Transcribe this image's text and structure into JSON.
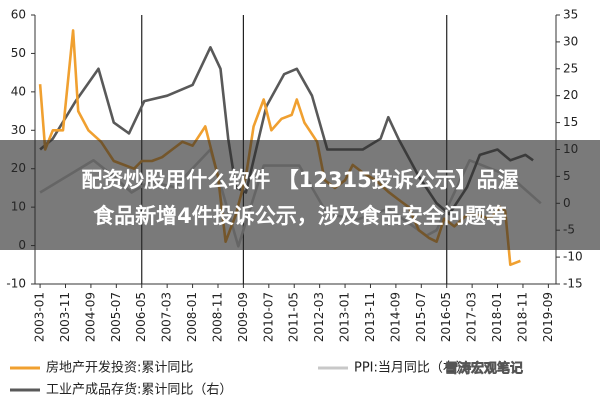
{
  "chart_data": {
    "type": "line",
    "xlim": [
      "2002-11",
      "2019-12"
    ],
    "xticks": [
      "2003-01",
      "2003-11",
      "2004-09",
      "2005-07",
      "2006-05",
      "2007-03",
      "2008-01",
      "2008-11",
      "2009-09",
      "2010-07",
      "2011-05",
      "2012-03",
      "2013-01",
      "2013-11",
      "2014-09",
      "2015-07",
      "2016-05",
      "2017-03",
      "2018-01",
      "2018-11",
      "2019-09"
    ],
    "ylim": [
      -10,
      60
    ],
    "yticks": [
      -10,
      0,
      10,
      20,
      30,
      40,
      50,
      60
    ],
    "y2lim": [
      -15,
      35
    ],
    "y2ticks": [
      -15,
      -10,
      -5,
      0,
      5,
      10,
      15,
      20,
      25,
      30,
      35
    ],
    "vlines": [
      "2006-05",
      "2009-09",
      "2016-05"
    ],
    "series": [
      {
        "name": "PPI:当月同比（右）",
        "color": "#c8c8c8",
        "axis": "y2",
        "x": [
          "2003-01",
          "2004-10",
          "2005-06",
          "2006-01",
          "2006-08",
          "2007-06",
          "2008-08",
          "2009-07",
          "2010-05",
          "2011-07",
          "2012-06",
          "2013-06",
          "2014-06",
          "2015-09",
          "2016-01",
          "2017-02",
          "2018-06",
          "2019-06"
        ],
        "values": [
          2,
          8,
          5,
          2,
          4,
          3,
          10,
          -8,
          7,
          7,
          -2,
          -3,
          -1,
          -6,
          -5,
          8,
          5,
          0
        ]
      },
      {
        "name": "工业产成品存货:累计同比（右）",
        "color": "#595959",
        "axis": "y2",
        "x": [
          "2003-01",
          "2003-06",
          "2004-03",
          "2004-12",
          "2005-06",
          "2005-12",
          "2006-06",
          "2007-03",
          "2008-01",
          "2008-08",
          "2008-12",
          "2009-03",
          "2009-06",
          "2009-10",
          "2010-06",
          "2011-01",
          "2011-06",
          "2011-12",
          "2012-06",
          "2013-01",
          "2013-08",
          "2014-03",
          "2014-06",
          "2014-10",
          "2015-06",
          "2016-01",
          "2016-06",
          "2017-01",
          "2017-06",
          "2018-01",
          "2018-06",
          "2018-12",
          "2019-03"
        ],
        "values": [
          10,
          12,
          19,
          25,
          15,
          13,
          19,
          20,
          22,
          29,
          25,
          12,
          3,
          2,
          18,
          24,
          25,
          20,
          10,
          10,
          10,
          12,
          16,
          12,
          5,
          0,
          -2,
          3,
          9,
          10,
          8,
          9,
          8
        ]
      },
      {
        "name": "房地产开发投资:累计同比",
        "color": "#f0a030",
        "x": [
          "2003-01",
          "2003-03",
          "2003-06",
          "2003-10",
          "2004-02",
          "2004-04",
          "2004-08",
          "2005-01",
          "2005-06",
          "2005-10",
          "2006-02",
          "2006-05",
          "2006-09",
          "2007-01",
          "2007-05",
          "2007-09",
          "2008-01",
          "2008-06",
          "2008-11",
          "2009-02",
          "2009-06",
          "2009-10",
          "2010-01",
          "2010-05",
          "2010-08",
          "2010-12",
          "2011-04",
          "2011-06",
          "2011-09",
          "2012-02",
          "2012-05",
          "2012-09",
          "2013-01",
          "2013-04",
          "2013-08",
          "2014-01",
          "2014-06",
          "2014-10",
          "2015-02",
          "2015-06",
          "2015-10",
          "2016-01",
          "2016-04",
          "2016-08",
          "2017-01",
          "2017-05",
          "2017-10",
          "2018-02",
          "2018-04",
          "2018-06",
          "2018-10"
        ],
        "values": [
          42,
          25,
          30,
          30,
          56,
          35,
          30,
          27,
          22,
          21,
          20,
          22,
          22,
          23,
          25,
          27,
          26,
          31,
          18,
          1,
          8,
          18,
          31,
          38,
          30,
          33,
          34,
          38,
          32,
          27,
          17,
          15,
          17,
          21,
          19,
          17,
          14,
          12,
          10,
          4,
          2,
          1,
          7,
          5,
          8,
          8,
          7,
          10,
          9,
          -5,
          -4
        ]
      }
    ]
  },
  "banner": {
    "lines": [
      "配资炒股用什么软件 【12315投诉公示】品渥",
      "食品新增4件投诉公示，涉及食品安全问题等"
    ]
  },
  "watermark": "雪涛宏观笔记"
}
